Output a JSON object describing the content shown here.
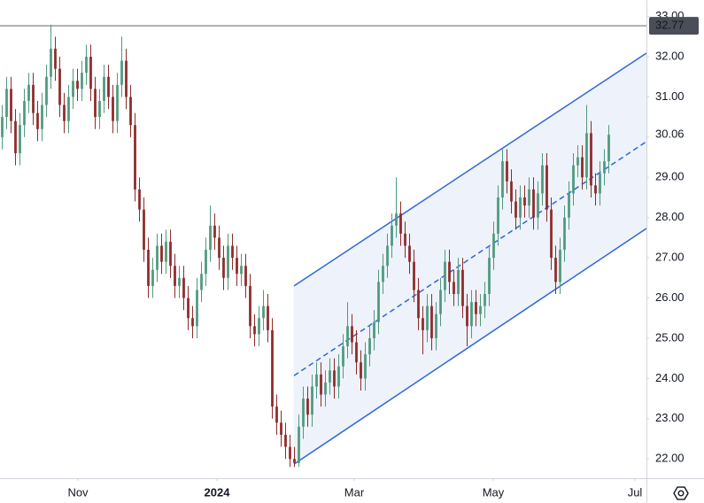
{
  "chart_data": {
    "type": "candlestick",
    "open": [
      30.0,
      30.5,
      31.2,
      30.4,
      29.6,
      30.3,
      30.9,
      31.3,
      30.6,
      30.2,
      30.8,
      31.5,
      32.2,
      31.7,
      30.8,
      30.4,
      31.0,
      31.4,
      31.2,
      31.6,
      32.0,
      31.2,
      30.5,
      30.9,
      31.5,
      31.0,
      30.4,
      31.3,
      31.9,
      31.0,
      30.3,
      28.7,
      28.2,
      27.2,
      26.3,
      26.7,
      27.3,
      26.9,
      27.4,
      26.8,
      26.3,
      26.5,
      26.0,
      25.5,
      25.3,
      26.2,
      26.6,
      27.2,
      27.8,
      27.5,
      27.0,
      26.5,
      27.3,
      27.0,
      26.6,
      26.8,
      26.3,
      25.3,
      25.1,
      25.5,
      25.8,
      25.2,
      23.3,
      22.9,
      22.6,
      22.3,
      22.0,
      21.9,
      22.8,
      23.5,
      23.1,
      23.8,
      24.1,
      23.6,
      23.9,
      24.2,
      23.8,
      24.3,
      24.8,
      25.3,
      24.9,
      24.4,
      24.0,
      24.6,
      25.0,
      25.4,
      26.4,
      26.8,
      27.3,
      27.8,
      28.1,
      27.6,
      27.3,
      26.9,
      26.2,
      25.5,
      25.2,
      25.8,
      25.0,
      25.6,
      26.2,
      26.9,
      26.4,
      26.1,
      26.7,
      25.8,
      25.3,
      25.9,
      25.6,
      25.8,
      26.1,
      27.0,
      27.6,
      28.5,
      29.4,
      28.9,
      28.4,
      28.0,
      28.5,
      28.3,
      28.7,
      28.0,
      28.6,
      29.3,
      28.2,
      27.0,
      26.4,
      27.2,
      28.0,
      28.6,
      29.3,
      29.5,
      29.0,
      30.1,
      28.8,
      28.6,
      29.1,
      29.4
    ],
    "high": [
      30.8,
      31.5,
      31.5,
      30.7,
      30.6,
      31.2,
      31.6,
      31.6,
      30.9,
      31.1,
      31.8,
      32.8,
      32.5,
      32.0,
      31.1,
      31.3,
      31.7,
      31.7,
      31.9,
      32.3,
      32.3,
      31.5,
      31.2,
      31.8,
      31.8,
      31.3,
      31.6,
      32.5,
      32.2,
      31.3,
      30.6,
      29.0,
      28.5,
      27.5,
      27.0,
      27.6,
      27.6,
      27.7,
      27.7,
      27.1,
      26.8,
      26.8,
      26.3,
      25.8,
      26.5,
      26.9,
      27.5,
      28.3,
      28.1,
      27.8,
      27.3,
      27.6,
      27.6,
      27.3,
      27.1,
      27.1,
      26.6,
      25.6,
      25.8,
      26.2,
      26.1,
      25.5,
      23.6,
      23.2,
      22.9,
      22.6,
      22.3,
      23.1,
      23.8,
      23.8,
      24.1,
      24.4,
      24.4,
      24.2,
      24.5,
      24.5,
      24.6,
      25.1,
      25.9,
      25.6,
      25.2,
      24.7,
      24.9,
      25.3,
      25.7,
      26.7,
      27.1,
      27.6,
      28.1,
      29.0,
      28.4,
      27.9,
      27.6,
      27.2,
      26.5,
      25.8,
      26.1,
      26.1,
      25.9,
      26.5,
      27.2,
      27.2,
      26.7,
      27.0,
      27.0,
      26.1,
      26.2,
      26.2,
      26.1,
      26.4,
      27.3,
      27.9,
      28.8,
      29.7,
      29.7,
      29.2,
      28.7,
      28.8,
      28.8,
      29.0,
      29.0,
      28.9,
      29.6,
      29.6,
      28.5,
      27.3,
      27.5,
      28.3,
      28.9,
      29.6,
      29.8,
      29.8,
      30.8,
      30.4,
      29.1,
      29.4,
      29.7,
      30.3
    ],
    "low": [
      29.7,
      30.2,
      30.1,
      29.3,
      29.3,
      30.0,
      30.6,
      30.3,
      29.9,
      29.9,
      30.5,
      31.2,
      31.4,
      30.5,
      30.1,
      30.1,
      30.7,
      30.9,
      30.9,
      31.3,
      30.9,
      30.2,
      30.2,
      30.6,
      30.7,
      30.1,
      30.1,
      31.0,
      30.7,
      30.0,
      28.4,
      27.9,
      26.9,
      26.0,
      26.0,
      26.4,
      26.6,
      26.6,
      26.5,
      26.0,
      26.0,
      25.7,
      25.2,
      25.0,
      25.0,
      25.9,
      26.3,
      26.9,
      27.2,
      26.7,
      26.2,
      26.2,
      26.7,
      26.3,
      26.3,
      26.0,
      25.0,
      24.8,
      24.8,
      25.2,
      24.9,
      23.0,
      22.6,
      22.3,
      22.0,
      21.8,
      21.8,
      21.8,
      22.5,
      22.8,
      22.8,
      23.5,
      23.3,
      23.3,
      23.6,
      23.5,
      23.5,
      24.0,
      24.5,
      24.6,
      24.1,
      23.7,
      23.7,
      24.3,
      24.7,
      25.1,
      26.1,
      26.5,
      27.0,
      27.5,
      27.3,
      27.0,
      26.6,
      25.9,
      25.2,
      24.6,
      24.9,
      24.7,
      24.7,
      25.3,
      25.9,
      26.1,
      25.8,
      25.8,
      25.5,
      24.8,
      25.0,
      25.3,
      25.3,
      25.5,
      25.8,
      26.7,
      27.3,
      28.2,
      28.6,
      28.1,
      27.7,
      27.7,
      28.0,
      28.0,
      27.7,
      27.7,
      28.3,
      27.9,
      26.7,
      26.1,
      26.1,
      26.9,
      27.7,
      28.3,
      29.0,
      28.7,
      28.7,
      28.5,
      28.3,
      28.3,
      28.8,
      29.1
    ],
    "close": [
      30.5,
      31.2,
      30.4,
      29.6,
      30.3,
      30.9,
      31.3,
      30.6,
      30.2,
      30.8,
      31.5,
      32.2,
      31.7,
      30.8,
      30.4,
      31.0,
      31.4,
      31.2,
      31.6,
      32.0,
      31.2,
      30.5,
      30.9,
      31.5,
      31.0,
      30.4,
      31.3,
      31.9,
      31.0,
      30.3,
      28.7,
      28.2,
      27.2,
      26.3,
      26.7,
      27.3,
      26.9,
      27.4,
      26.8,
      26.3,
      26.5,
      26.0,
      25.5,
      25.3,
      26.2,
      26.6,
      27.2,
      27.8,
      27.5,
      27.0,
      26.5,
      27.3,
      27.0,
      26.6,
      26.8,
      26.3,
      25.3,
      25.1,
      25.5,
      25.8,
      25.2,
      23.3,
      22.9,
      22.6,
      22.3,
      22.0,
      21.9,
      22.8,
      23.5,
      23.1,
      23.8,
      24.1,
      23.6,
      23.9,
      24.2,
      23.8,
      24.3,
      24.8,
      25.3,
      24.9,
      24.4,
      24.0,
      24.6,
      25.0,
      25.4,
      26.4,
      26.8,
      27.3,
      27.8,
      28.1,
      27.6,
      27.3,
      26.9,
      26.2,
      25.5,
      25.2,
      25.8,
      25.0,
      25.6,
      26.2,
      26.9,
      26.4,
      26.1,
      26.7,
      25.8,
      25.3,
      25.9,
      25.6,
      25.8,
      26.1,
      27.0,
      27.6,
      28.5,
      29.4,
      28.9,
      28.4,
      28.0,
      28.5,
      28.3,
      28.7,
      28.0,
      28.6,
      29.3,
      28.2,
      27.0,
      26.4,
      27.2,
      28.0,
      28.6,
      29.3,
      29.5,
      29.0,
      30.1,
      28.8,
      28.6,
      29.1,
      29.4,
      30.06
    ],
    "up_color": "#4e9a7d",
    "down_color": "#8f2a2a",
    "xlim": [
      -0.5,
      145.5
    ],
    "ylim": [
      21.52,
      33.41
    ],
    "xticks": [
      {
        "value": 17.1,
        "label": "Nov"
      },
      {
        "value": 48.5,
        "label": "2024"
      },
      {
        "value": 79.5,
        "label": "Mar"
      },
      {
        "value": 110.9,
        "label": "May"
      },
      {
        "value": 142.9,
        "label": "Jul"
      }
    ],
    "yticks": [
      {
        "value": 22,
        "label": "22.00"
      },
      {
        "value": 23,
        "label": "23.00"
      },
      {
        "value": 24,
        "label": "24.00"
      },
      {
        "value": 25,
        "label": "25.00"
      },
      {
        "value": 26,
        "label": "26.00"
      },
      {
        "value": 27,
        "label": "27.00"
      },
      {
        "value": 28,
        "label": "28.00"
      },
      {
        "value": 29,
        "label": "29.00"
      },
      {
        "value": 30,
        "label": "30.00"
      },
      {
        "value": 31,
        "label": "31.00"
      },
      {
        "value": 32,
        "label": "32.00"
      },
      {
        "value": 33,
        "label": "33.00"
      }
    ],
    "price_line": 32.77,
    "channel": {
      "x": [
        65.9,
        145.5
      ],
      "upper": [
        26.3,
        32.09
      ],
      "middle": [
        24.07,
        29.89
      ],
      "lower": [
        21.87,
        27.73
      ],
      "color": "#2f66d8",
      "fill": "#eef2fb"
    }
  }
}
